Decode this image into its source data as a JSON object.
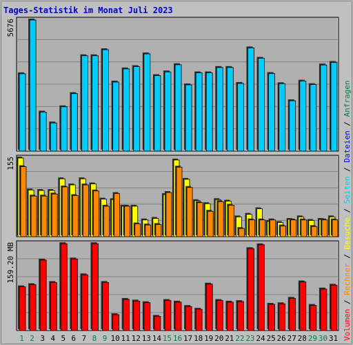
{
  "title": "Tages-Statistik im Monat Juli 2023",
  "colors": {
    "background": "#c0c0c0",
    "plot_background": "#b0b0b0",
    "title": "#0000cc",
    "anfragen": "#00ccff",
    "dateien": "#0000ff",
    "seiten": "#00ccff",
    "besuche": "#ffff00",
    "rechner": "#ff8800",
    "volumen": "#ff0000",
    "weekend_label": "#008040",
    "weekday_label": "#000000"
  },
  "chart_data": [
    {
      "type": "bar",
      "panel": "anfragen",
      "ymax_label": "5676",
      "ylim": [
        0,
        5676
      ],
      "series": [
        {
          "name": "Anfragen",
          "color": "#00ccff",
          "values": [
            3350,
            5676,
            1690,
            1220,
            1920,
            2490,
            4130,
            4130,
            4390,
            2990,
            3560,
            3660,
            4210,
            3270,
            3430,
            3740,
            2870,
            3390,
            3390,
            3620,
            3620,
            2930,
            4470,
            4020,
            3360,
            2920,
            2180,
            3030,
            2880,
            3730,
            3840
          ]
        }
      ]
    },
    {
      "type": "bar",
      "panel": "besuche-rechner",
      "ymax_label": "155",
      "ylim": [
        0,
        155
      ],
      "series": [
        {
          "name": "Besuche",
          "color": "#ffff00",
          "values": [
            155,
            92,
            91,
            91,
            114,
            102,
            114,
            104,
            74,
            73,
            60,
            60,
            33,
            36,
            83,
            151,
            113,
            71,
            65,
            73,
            70,
            39,
            44,
            55,
            30,
            28,
            34,
            39,
            32,
            34,
            39
          ]
        },
        {
          "name": "Rechner",
          "color": "#ff8800",
          "values": [
            138,
            80,
            80,
            84,
            98,
            81,
            102,
            90,
            60,
            85,
            60,
            25,
            23,
            24,
            87,
            137,
            97,
            67,
            50,
            69,
            62,
            16,
            33,
            33,
            33,
            21,
            33,
            33,
            20,
            33,
            33
          ]
        }
      ]
    },
    {
      "type": "bar",
      "panel": "volumen",
      "ymax_label": "159.20 MB",
      "ylim": [
        0,
        159.2
      ],
      "series": [
        {
          "name": "Volumen",
          "color": "#ff0000",
          "values": [
            80,
            84,
            129,
            88,
            159,
            131,
            102,
            159,
            88,
            29,
            57,
            54,
            51,
            26,
            55,
            52,
            44,
            39,
            85,
            55,
            52,
            53,
            150,
            157,
            48,
            49,
            59,
            89,
            46,
            76,
            83
          ]
        }
      ]
    }
  ],
  "x_labels": [
    "1",
    "2",
    "3",
    "4",
    "5",
    "6",
    "7",
    "8",
    "9",
    "10",
    "11",
    "12",
    "13",
    "14",
    "15",
    "16",
    "17",
    "18",
    "19",
    "20",
    "21",
    "22",
    "23",
    "24",
    "25",
    "26",
    "27",
    "28",
    "29",
    "30",
    "31"
  ],
  "weekend_days": [
    1,
    2,
    8,
    9,
    15,
    16,
    22,
    23,
    29,
    30
  ],
  "right_legend": [
    {
      "text": "Volumen",
      "color": "#ff0000"
    },
    {
      "text": " / ",
      "color": "#000000"
    },
    {
      "text": "Rechner",
      "color": "#ff8800"
    },
    {
      "text": " / ",
      "color": "#000000"
    },
    {
      "text": "Besuche",
      "color": "#ffff00"
    },
    {
      "text": " / ",
      "color": "#000000"
    },
    {
      "text": "Seiten",
      "color": "#00ccff"
    },
    {
      "text": " / ",
      "color": "#000000"
    },
    {
      "text": "Dateien",
      "color": "#0000ff"
    },
    {
      "text": " / ",
      "color": "#000000"
    },
    {
      "text": "Anfragen",
      "color": "#008040"
    }
  ]
}
